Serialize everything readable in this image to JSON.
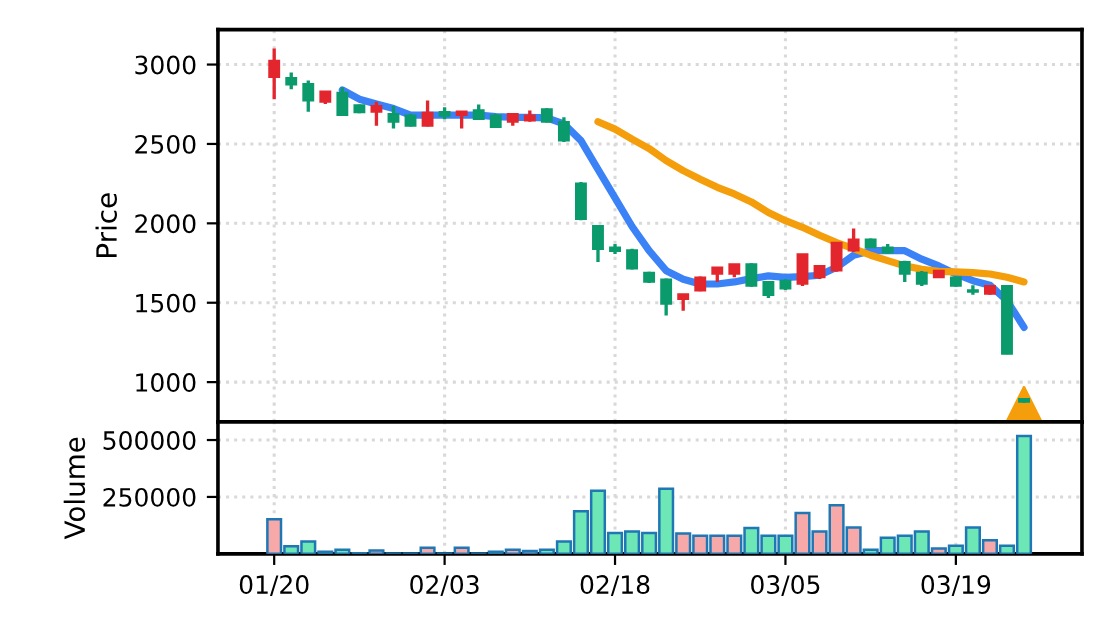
{
  "chart_data": [
    {
      "type": "candlestick",
      "ylabel": "Price",
      "grid": true,
      "legend": false,
      "tick_labels": "y",
      "categories": [
        null,
        null,
        null,
        null,
        null,
        null,
        null,
        null,
        null,
        null,
        null,
        null,
        null,
        null,
        null,
        null,
        null,
        null,
        null,
        null,
        null,
        null,
        null,
        null,
        null,
        null,
        null,
        null,
        null,
        null,
        null,
        null,
        null,
        null,
        null,
        null,
        null,
        null,
        null,
        null,
        null,
        null,
        null,
        null,
        null
      ],
      "ylim": [
        750,
        3220
      ],
      "yticks": [
        1000,
        1500,
        2000,
        2500,
        3000
      ],
      "ohlc": [
        [
          3025,
          3101,
          2782,
          2920
        ],
        [
          2874,
          2950,
          2845,
          2916
        ],
        [
          2773,
          2899,
          2702,
          2878
        ],
        [
          2832,
          2832,
          2752,
          2765
        ],
        [
          2681,
          2857,
          2681,
          2824
        ],
        [
          2698,
          2748,
          2694,
          2744
        ],
        [
          2740,
          2765,
          2614,
          2702
        ],
        [
          2639,
          2740,
          2597,
          2689
        ],
        [
          2614,
          2690,
          2610,
          2681
        ],
        [
          2698,
          2773,
          2610,
          2614
        ],
        [
          2677,
          2731,
          2656,
          2702
        ],
        [
          2706,
          2706,
          2597,
          2681
        ],
        [
          2656,
          2748,
          2656,
          2714
        ],
        [
          2605,
          2690,
          2600,
          2681
        ],
        [
          2689,
          2689,
          2614,
          2639
        ],
        [
          2681,
          2710,
          2640,
          2647
        ],
        [
          2639,
          2725,
          2635,
          2719
        ],
        [
          2521,
          2668,
          2513,
          2639
        ],
        [
          2026,
          2260,
          2020,
          2252
        ],
        [
          1837,
          1984,
          1757,
          1984
        ],
        [
          1824,
          1870,
          1807,
          1849
        ],
        [
          1715,
          1840,
          1710,
          1832
        ],
        [
          1631,
          1695,
          1625,
          1690
        ],
        [
          1492,
          1652,
          1420,
          1648
        ],
        [
          1555,
          1555,
          1450,
          1522
        ],
        [
          1660,
          1665,
          1572,
          1576
        ],
        [
          1723,
          1723,
          1631,
          1681
        ],
        [
          1744,
          1744,
          1660,
          1681
        ],
        [
          1606,
          1748,
          1600,
          1744
        ],
        [
          1547,
          1635,
          1530,
          1631
        ],
        [
          1589,
          1648,
          1580,
          1639
        ],
        [
          1807,
          1807,
          1605,
          1618
        ],
        [
          1732,
          1735,
          1650,
          1660
        ],
        [
          1879,
          1880,
          1695,
          1702
        ],
        [
          1900,
          1967,
          1820,
          1828
        ],
        [
          1849,
          1905,
          1845,
          1900
        ],
        [
          1816,
          1870,
          1810,
          1849
        ],
        [
          1681,
          1765,
          1631,
          1757
        ],
        [
          1618,
          1700,
          1605,
          1690
        ],
        [
          1702,
          1705,
          1655,
          1660
        ],
        [
          1606,
          1665,
          1600,
          1660
        ],
        [
          1568,
          1610,
          1550,
          1580
        ],
        [
          1606,
          1610,
          1550,
          1555
        ],
        [
          1177,
          1610,
          1175,
          1606
        ],
        [
          875,
          900,
          870,
          895
        ]
      ],
      "colors": [
        "#e3262d",
        "#0a9a6c",
        "#0a9a6c",
        "#e3262d",
        "#0a9a6c",
        "#0a9a6c",
        "#e3262d",
        "#0a9a6c",
        "#0a9a6c",
        "#e3262d",
        "#0a9a6c",
        "#e3262d",
        "#0a9a6c",
        "#0a9a6c",
        "#e3262d",
        "#e3262d",
        "#0a9a6c",
        "#0a9a6c",
        "#0a9a6c",
        "#0a9a6c",
        "#0a9a6c",
        "#0a9a6c",
        "#0a9a6c",
        "#0a9a6c",
        "#e3262d",
        "#e3262d",
        "#e3262d",
        "#e3262d",
        "#0a9a6c",
        "#0a9a6c",
        "#0a9a6c",
        "#e3262d",
        "#e3262d",
        "#e3262d",
        "#e3262d",
        "#0a9a6c",
        "#0a9a6c",
        "#0a9a6c",
        "#0a9a6c",
        "#e3262d",
        "#0a9a6c",
        "#0a9a6c",
        "#e3262d",
        "#0a9a6c",
        "#0a9a6c"
      ],
      "series": [
        {
          "type": "line",
          "color": "#3b82f6",
          "values": [
            null,
            null,
            null,
            null,
            2840,
            2782,
            2752,
            2723,
            2681,
            2681,
            2681,
            2681,
            2681,
            2672,
            2668,
            2668,
            2664,
            2626,
            2521,
            2340,
            2160,
            1980,
            1828,
            1702,
            1648,
            1618,
            1618,
            1631,
            1652,
            1669,
            1660,
            1664,
            1673,
            1723,
            1799,
            1828,
            1828,
            1828,
            1774,
            1732,
            1681,
            1639,
            1610,
            1513,
            1345
          ]
        },
        {
          "type": "line",
          "color": "#f59e0b",
          "values": [
            null,
            null,
            null,
            null,
            null,
            null,
            null,
            null,
            null,
            null,
            null,
            null,
            null,
            null,
            null,
            null,
            null,
            null,
            null,
            2640,
            2593,
            2530,
            2471,
            2395,
            2332,
            2278,
            2227,
            2185,
            2135,
            2068,
            2017,
            1975,
            1925,
            1879,
            1841,
            1799,
            1765,
            1732,
            1711,
            1698,
            1694,
            1690,
            1681,
            1660,
            1631
          ]
        },
        {
          "type": "scatter",
          "marker": "triangle",
          "color": "#f59e0b",
          "values": [
            null,
            null,
            null,
            null,
            null,
            null,
            null,
            null,
            null,
            null,
            null,
            null,
            null,
            null,
            null,
            null,
            null,
            null,
            null,
            null,
            null,
            null,
            null,
            null,
            null,
            null,
            null,
            null,
            null,
            null,
            null,
            null,
            null,
            null,
            null,
            null,
            null,
            null,
            null,
            null,
            null,
            null,
            null,
            null,
            860
          ]
        }
      ]
    },
    {
      "type": "bar",
      "ylabel": "Volume",
      "grid": true,
      "legend": false,
      "categories": [
        "01/20",
        null,
        null,
        null,
        null,
        null,
        null,
        null,
        null,
        null,
        "02/03",
        null,
        null,
        null,
        null,
        null,
        null,
        null,
        null,
        null,
        "02/18",
        null,
        null,
        null,
        null,
        null,
        null,
        null,
        null,
        null,
        "03/05",
        null,
        null,
        null,
        null,
        null,
        null,
        null,
        null,
        null,
        "03/19",
        null,
        null,
        null,
        null
      ],
      "ylim": [
        0,
        580000
      ],
      "yticks": [
        250000,
        500000
      ],
      "values": [
        152000,
        33000,
        54000,
        9000,
        18000,
        3000,
        15000,
        2000,
        2000,
        27000,
        2000,
        27000,
        2000,
        9000,
        18000,
        12000,
        18000,
        54000,
        187000,
        277000,
        92000,
        98000,
        92000,
        286000,
        89000,
        80000,
        80000,
        80000,
        113000,
        80000,
        80000,
        179000,
        98000,
        214000,
        116000,
        18000,
        71000,
        80000,
        98000,
        24000,
        36000,
        116000,
        60000,
        36000,
        518000
      ],
      "colors": [
        "#f7a8a8",
        "#6ee7b7",
        "#6ee7b7",
        "#6ee7b7",
        "#6ee7b7",
        "#6ee7b7",
        "#f7a8a8",
        "#6ee7b7",
        "#6ee7b7",
        "#f7a8a8",
        "#6ee7b7",
        "#f7a8a8",
        "#6ee7b7",
        "#6ee7b7",
        "#f7a8a8",
        "#f7a8a8",
        "#6ee7b7",
        "#6ee7b7",
        "#6ee7b7",
        "#6ee7b7",
        "#6ee7b7",
        "#6ee7b7",
        "#6ee7b7",
        "#6ee7b7",
        "#f7a8a8",
        "#f7a8a8",
        "#f7a8a8",
        "#f7a8a8",
        "#6ee7b7",
        "#6ee7b7",
        "#6ee7b7",
        "#f7a8a8",
        "#f7a8a8",
        "#f7a8a8",
        "#f7a8a8",
        "#6ee7b7",
        "#6ee7b7",
        "#6ee7b7",
        "#6ee7b7",
        "#f7a8a8",
        "#6ee7b7",
        "#6ee7b7",
        "#f7a8a8",
        "#6ee7b7",
        "#6ee7b7"
      ]
    }
  ]
}
